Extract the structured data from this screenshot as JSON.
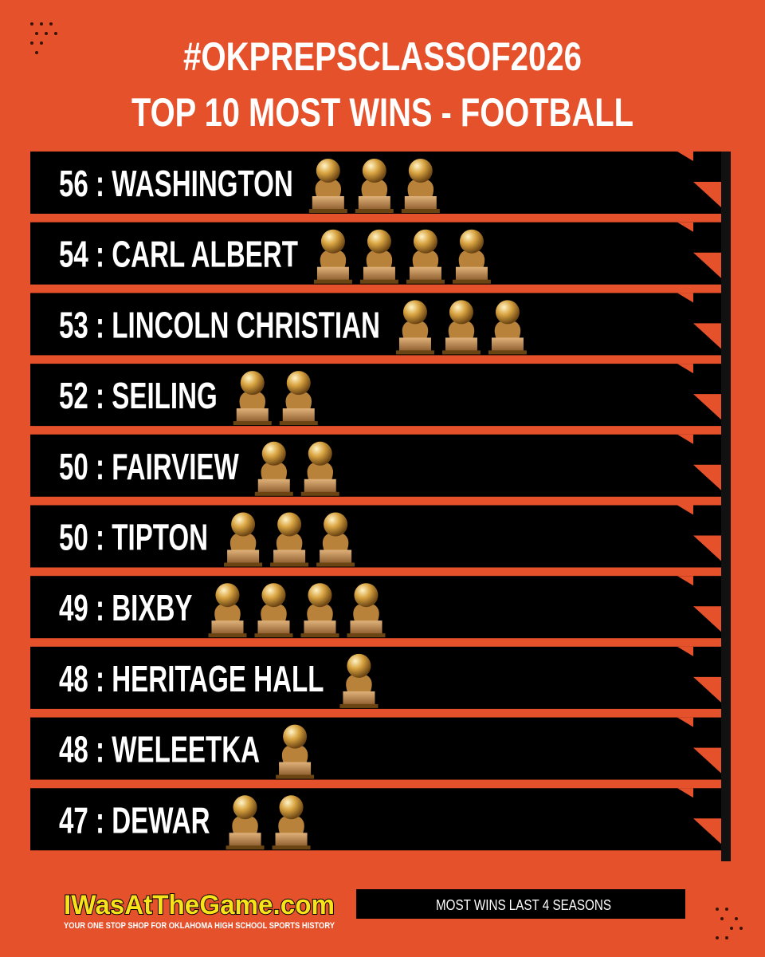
{
  "header": {
    "title_line1": "#OKPREPSCLASSOF2026",
    "title_line2": "TOP 10 MOST WINS - FOOTBALL"
  },
  "rows": [
    {
      "label": "56 : WASHINGTON",
      "trophies": 3
    },
    {
      "label": "54 : CARL ALBERT",
      "trophies": 4
    },
    {
      "label": "53 : LINCOLN CHRISTIAN",
      "trophies": 3
    },
    {
      "label": "52 : SEILING",
      "trophies": 2
    },
    {
      "label": "50 : FAIRVIEW",
      "trophies": 2
    },
    {
      "label": "50 : TIPTON",
      "trophies": 3
    },
    {
      "label": "49 : BIXBY",
      "trophies": 4
    },
    {
      "label": "48 : HERITAGE HALL",
      "trophies": 1
    },
    {
      "label": "48 : WELEETKA",
      "trophies": 1
    },
    {
      "label": "47 : DEWAR",
      "trophies": 2
    }
  ],
  "footer": {
    "logo": "IWasAtTheGame.com",
    "tagline": "YOUR ONE STOP SHOP FOR OKLAHOMA HIGH SCHOOL SPORTS HISTORY",
    "note": "MOST WINS LAST 4 SEASONS"
  }
}
